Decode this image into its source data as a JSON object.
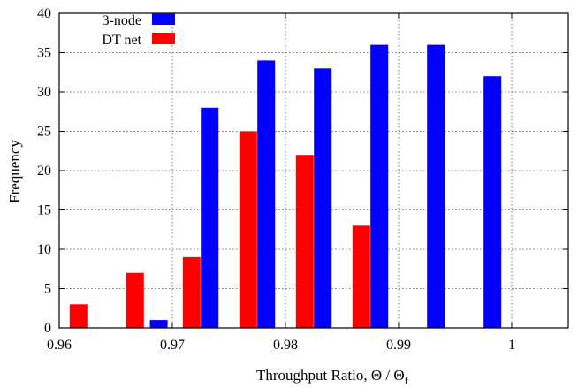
{
  "chart_data": {
    "type": "bar",
    "xlabel": "Throughput Ratio, Θ / Θ",
    "xlabel_subscript": "f",
    "ylabel": "Frequency",
    "xlim": [
      0.96,
      1.005
    ],
    "ylim": [
      0,
      40
    ],
    "x_ticks": [
      0.96,
      0.97,
      0.98,
      0.99,
      1
    ],
    "x_tick_labels": [
      "0.96",
      "0.97",
      "0.98",
      "0.99",
      "1"
    ],
    "y_ticks": [
      0,
      5,
      10,
      15,
      20,
      25,
      30,
      35,
      40
    ],
    "y_tick_labels": [
      "0",
      "5",
      "10",
      "15",
      "20",
      "25",
      "30",
      "35",
      "40"
    ],
    "grid": true,
    "legend_position": "top-left",
    "series": [
      {
        "name": "3-node",
        "color": "#0000ff",
        "x": [
          0.9688,
          0.9733,
          0.9783,
          0.9833,
          0.9883,
          0.9933,
          0.9983
        ],
        "values": [
          1,
          28,
          34,
          33,
          36,
          36,
          32
        ]
      },
      {
        "name": "DT net",
        "color": "#ff0000",
        "x": [
          0.9617,
          0.9667,
          0.9717,
          0.9767,
          0.9817,
          0.9867
        ],
        "values": [
          3,
          7,
          9,
          25,
          22,
          13
        ]
      }
    ]
  }
}
